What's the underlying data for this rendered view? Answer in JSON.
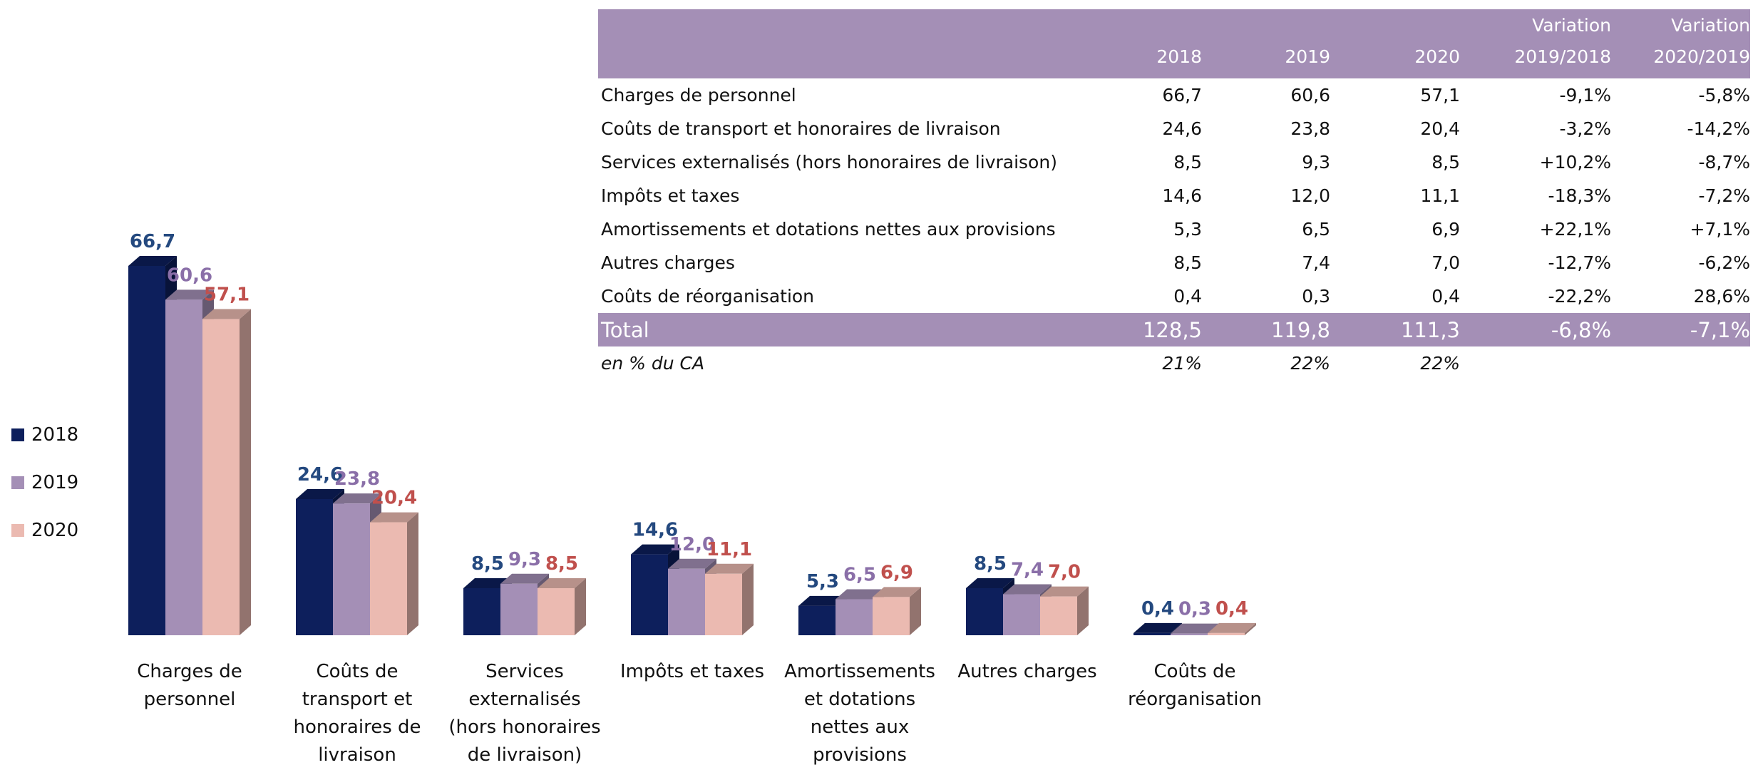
{
  "chart_data": {
    "type": "bar3d",
    "categories": [
      "Charges de personnel",
      "Coûts de transport et honoraires de livraison",
      "Services externalisés (hors honoraires de livraison)",
      "Impôts et taxes",
      "Amortissements et dotations nettes aux provisions",
      "Autres charges",
      "Coûts de réorganisation"
    ],
    "series": [
      {
        "name": "2018",
        "color": "#0d1f5c",
        "label_color": "#24497f",
        "values": [
          66.7,
          24.6,
          8.5,
          14.6,
          5.3,
          8.5,
          0.4
        ],
        "value_labels": [
          "66,7",
          "24,6",
          "8,5",
          "14,6",
          "5,3",
          "8,5",
          "0,4"
        ]
      },
      {
        "name": "2019",
        "color": "#a48fb6",
        "label_color": "#8a6fa8",
        "values": [
          60.6,
          23.8,
          9.3,
          12.0,
          6.5,
          7.4,
          0.3
        ],
        "value_labels": [
          "60,6",
          "23,8",
          "9,3",
          "12,0",
          "6,5",
          "7,4",
          "0,3"
        ]
      },
      {
        "name": "2020",
        "color": "#ebbab1",
        "label_color": "#c0504d",
        "values": [
          57.1,
          20.4,
          8.5,
          11.1,
          6.9,
          7.0,
          0.4
        ],
        "value_labels": [
          "57,1",
          "20,4",
          "8,5",
          "11,1",
          "6,9",
          "7,0",
          "0,4"
        ]
      }
    ],
    "legend": "left"
  },
  "table": {
    "columns": [
      "2018",
      "2019",
      "2020",
      "Variation 2019/2018",
      "Variation 2020/2019"
    ],
    "rows": [
      {
        "label": "Charges de personnel",
        "values": [
          "66,7",
          "60,6",
          "57,1",
          "-9,1%",
          "-5,8%"
        ]
      },
      {
        "label": "Coûts de transport et honoraires de livraison",
        "values": [
          "24,6",
          "23,8",
          "20,4",
          "-3,2%",
          "-14,2%"
        ]
      },
      {
        "label": "Services externalisés (hors honoraires de livraison)",
        "values": [
          "8,5",
          "9,3",
          "8,5",
          "+10,2%",
          "-8,7%"
        ]
      },
      {
        "label": "Impôts et taxes",
        "values": [
          "14,6",
          "12,0",
          "11,1",
          "-18,3%",
          "-7,2%"
        ]
      },
      {
        "label": "Amortissements et dotations nettes aux provisions",
        "values": [
          "5,3",
          "6,5",
          "6,9",
          "+22,1%",
          "+7,1%"
        ]
      },
      {
        "label": "Autres charges",
        "values": [
          "8,5",
          "7,4",
          "7,0",
          "-12,7%",
          "-6,2%"
        ]
      },
      {
        "label": "Coûts de réorganisation",
        "values": [
          "0,4",
          "0,3",
          "0,4",
          "-22,2%",
          "28,6%"
        ]
      }
    ],
    "total": {
      "label": "Total",
      "values": [
        "128,5",
        "119,8",
        "111,3",
        "-6,8%",
        "-7,1%"
      ]
    },
    "footnote": {
      "label": "en % du CA",
      "values": [
        "21%",
        "22%",
        "22%"
      ]
    }
  }
}
